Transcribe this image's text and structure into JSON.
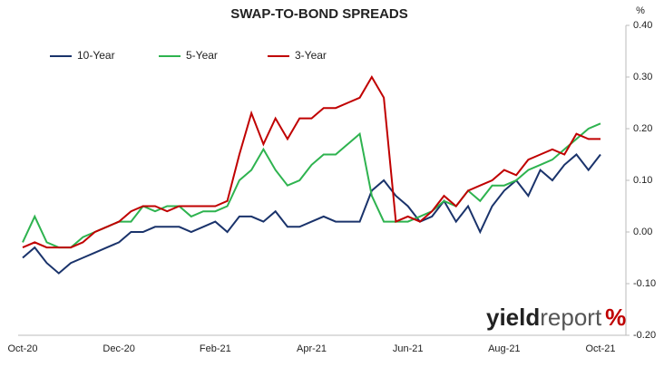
{
  "chart_data": {
    "type": "line",
    "title": "SWAP-TO-BOND SPREADS",
    "y_unit": "%",
    "categories": [
      "Oct-20",
      null,
      null,
      null,
      null,
      null,
      null,
      null,
      "Dec-20",
      null,
      null,
      null,
      null,
      null,
      null,
      null,
      "Feb-21",
      null,
      null,
      null,
      null,
      null,
      null,
      null,
      "Apr-21",
      null,
      null,
      null,
      null,
      null,
      null,
      null,
      "Jun-21",
      null,
      null,
      null,
      null,
      null,
      null,
      null,
      "Aug-21",
      null,
      null,
      null,
      null,
      null,
      null,
      null,
      "Oct-21"
    ],
    "series": [
      {
        "name": "10-Year",
        "color": "#1a336b",
        "values": [
          -0.05,
          -0.03,
          -0.06,
          -0.08,
          -0.06,
          -0.05,
          -0.04,
          -0.03,
          -0.02,
          0.0,
          0.0,
          0.01,
          0.01,
          0.01,
          0.0,
          0.01,
          0.02,
          0.0,
          0.03,
          0.03,
          0.02,
          0.04,
          0.01,
          0.01,
          0.02,
          0.03,
          0.02,
          0.02,
          0.02,
          0.08,
          0.1,
          0.07,
          0.05,
          0.02,
          0.03,
          0.06,
          0.02,
          0.05,
          0.0,
          0.05,
          0.08,
          0.1,
          0.07,
          0.12,
          0.1,
          0.13,
          0.15,
          0.12,
          0.15
        ]
      },
      {
        "name": "5-Year",
        "color": "#2eb34f",
        "values": [
          -0.02,
          0.03,
          -0.02,
          -0.03,
          -0.03,
          -0.01,
          0.0,
          0.01,
          0.02,
          0.02,
          0.05,
          0.04,
          0.05,
          0.05,
          0.03,
          0.04,
          0.04,
          0.05,
          0.1,
          0.12,
          0.16,
          0.12,
          0.09,
          0.1,
          0.13,
          0.15,
          0.15,
          0.17,
          0.19,
          0.07,
          0.02,
          0.02,
          0.02,
          0.03,
          0.04,
          0.06,
          0.05,
          0.08,
          0.06,
          0.09,
          0.09,
          0.1,
          0.12,
          0.13,
          0.14,
          0.16,
          0.18,
          0.2,
          0.21
        ]
      },
      {
        "name": "3-Year",
        "color": "#c00000",
        "values": [
          -0.03,
          -0.02,
          -0.03,
          -0.03,
          -0.03,
          -0.02,
          0.0,
          0.01,
          0.02,
          0.04,
          0.05,
          0.05,
          0.04,
          0.05,
          0.05,
          0.05,
          0.05,
          0.06,
          0.15,
          0.23,
          0.17,
          0.22,
          0.18,
          0.22,
          0.22,
          0.24,
          0.24,
          0.25,
          0.26,
          0.3,
          0.26,
          0.02,
          0.03,
          0.02,
          0.04,
          0.07,
          0.05,
          0.08,
          0.09,
          0.1,
          0.12,
          0.11,
          0.14,
          0.15,
          0.16,
          0.15,
          0.19,
          0.18,
          0.18
        ]
      }
    ],
    "ylim": [
      -0.2,
      0.4
    ],
    "yticks": [
      {
        "value": 0.4,
        "label": "0.40"
      },
      {
        "value": 0.3,
        "label": "0.30"
      },
      {
        "value": 0.2,
        "label": "0.20"
      },
      {
        "value": 0.1,
        "label": "0.10"
      },
      {
        "value": 0.0,
        "label": "0.00"
      },
      {
        "value": -0.1,
        "label": "-0.10"
      },
      {
        "value": -0.2,
        "label": "-0.20"
      }
    ],
    "grid": false,
    "legend": "top-left"
  },
  "logo": {
    "word1": "yield",
    "word2": "report",
    "symbol": "%"
  }
}
